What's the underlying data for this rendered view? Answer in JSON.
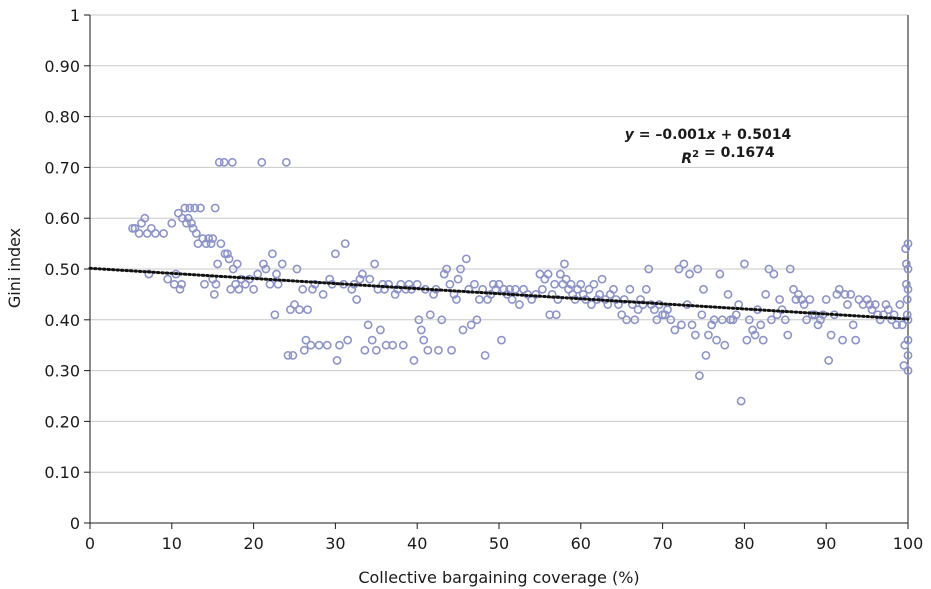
{
  "chart_data": {
    "type": "scatter",
    "xlabel": "Collective bargaining coverage (%)",
    "ylabel": "Gini index",
    "xlim": [
      0,
      100
    ],
    "ylim": [
      0,
      1
    ],
    "x_ticks": [
      0,
      10,
      20,
      30,
      40,
      50,
      60,
      70,
      80,
      90,
      100
    ],
    "x_tick_labels": [
      "0",
      "10",
      "20",
      "30",
      "40",
      "50",
      "60",
      "70",
      "80",
      "90",
      "100"
    ],
    "y_ticks": [
      0,
      0.1,
      0.2,
      0.3,
      0.4,
      0.5,
      0.6,
      0.7,
      0.8,
      0.9,
      1
    ],
    "y_tick_labels": [
      "0",
      "0.10",
      "0.20",
      "0.30",
      "0.40",
      "0.50",
      "0.60",
      "0.70",
      "0.80",
      "0.90",
      "1"
    ],
    "grid": "horizontal",
    "marker_color": "#8d93c8",
    "trendline_color": "#111111",
    "equation_line1": "y = –0.001x + 0.5014",
    "equation_line2": "R² = 0.1674",
    "trendline": {
      "slope": -0.001,
      "intercept": 0.5014,
      "r_squared": 0.1674,
      "style": "dotted"
    },
    "points": [
      [
        5.2,
        0.58
      ],
      [
        5.5,
        0.58
      ],
      [
        6,
        0.57
      ],
      [
        6.3,
        0.59
      ],
      [
        6.7,
        0.6
      ],
      [
        7,
        0.57
      ],
      [
        7.2,
        0.49
      ],
      [
        7.5,
        0.58
      ],
      [
        8,
        0.57
      ],
      [
        9,
        0.57
      ],
      [
        9.5,
        0.48
      ],
      [
        10,
        0.59
      ],
      [
        10.3,
        0.47
      ],
      [
        10.5,
        0.49
      ],
      [
        10.8,
        0.61
      ],
      [
        11,
        0.46
      ],
      [
        11.2,
        0.47
      ],
      [
        11.3,
        0.6
      ],
      [
        11.6,
        0.62
      ],
      [
        11.8,
        0.59
      ],
      [
        12,
        0.6
      ],
      [
        12.2,
        0.62
      ],
      [
        12.4,
        0.59
      ],
      [
        12.6,
        0.58
      ],
      [
        12.8,
        0.62
      ],
      [
        13,
        0.57
      ],
      [
        13.2,
        0.55
      ],
      [
        13.5,
        0.62
      ],
      [
        13.8,
        0.56
      ],
      [
        14,
        0.47
      ],
      [
        14.2,
        0.55
      ],
      [
        14.5,
        0.56
      ],
      [
        14.8,
        0.55
      ],
      [
        15,
        0.56
      ],
      [
        15,
        0.48
      ],
      [
        15.2,
        0.45
      ],
      [
        15.3,
        0.62
      ],
      [
        15.4,
        0.47
      ],
      [
        15.6,
        0.51
      ],
      [
        15.8,
        0.71
      ],
      [
        16,
        0.55
      ],
      [
        16.4,
        0.71
      ],
      [
        16.5,
        0.53
      ],
      [
        16.8,
        0.53
      ],
      [
        17,
        0.52
      ],
      [
        17.2,
        0.46
      ],
      [
        17.4,
        0.71
      ],
      [
        17.5,
        0.5
      ],
      [
        17.8,
        0.47
      ],
      [
        18,
        0.51
      ],
      [
        18.2,
        0.46
      ],
      [
        18.5,
        0.48
      ],
      [
        19,
        0.47
      ],
      [
        19.5,
        0.48
      ],
      [
        20,
        0.46
      ],
      [
        20.5,
        0.49
      ],
      [
        21,
        0.71
      ],
      [
        21.2,
        0.51
      ],
      [
        21.5,
        0.5
      ],
      [
        22,
        0.47
      ],
      [
        22.3,
        0.53
      ],
      [
        22.6,
        0.41
      ],
      [
        22.8,
        0.49
      ],
      [
        23,
        0.47
      ],
      [
        23.5,
        0.51
      ],
      [
        24,
        0.71
      ],
      [
        24.2,
        0.33
      ],
      [
        24.5,
        0.42
      ],
      [
        24.8,
        0.33
      ],
      [
        25,
        0.43
      ],
      [
        25.3,
        0.5
      ],
      [
        25.6,
        0.42
      ],
      [
        26,
        0.46
      ],
      [
        26.2,
        0.34
      ],
      [
        26.4,
        0.36
      ],
      [
        26.6,
        0.42
      ],
      [
        27,
        0.35
      ],
      [
        27.2,
        0.46
      ],
      [
        27.5,
        0.47
      ],
      [
        28,
        0.35
      ],
      [
        28.5,
        0.45
      ],
      [
        29,
        0.35
      ],
      [
        29.3,
        0.48
      ],
      [
        29.6,
        0.47
      ],
      [
        30,
        0.53
      ],
      [
        30.2,
        0.32
      ],
      [
        30.5,
        0.35
      ],
      [
        31,
        0.47
      ],
      [
        31.2,
        0.55
      ],
      [
        31.5,
        0.36
      ],
      [
        32,
        0.46
      ],
      [
        32.3,
        0.47
      ],
      [
        32.6,
        0.44
      ],
      [
        33,
        0.48
      ],
      [
        33.3,
        0.49
      ],
      [
        33.6,
        0.34
      ],
      [
        34,
        0.39
      ],
      [
        34.2,
        0.48
      ],
      [
        34.5,
        0.36
      ],
      [
        34.8,
        0.51
      ],
      [
        35,
        0.34
      ],
      [
        35.2,
        0.46
      ],
      [
        35.5,
        0.38
      ],
      [
        35.8,
        0.47
      ],
      [
        36,
        0.46
      ],
      [
        36.2,
        0.35
      ],
      [
        36.5,
        0.47
      ],
      [
        37,
        0.35
      ],
      [
        37.3,
        0.45
      ],
      [
        37.6,
        0.46
      ],
      [
        38,
        0.47
      ],
      [
        38.3,
        0.35
      ],
      [
        38.6,
        0.46
      ],
      [
        39,
        0.47
      ],
      [
        39.3,
        0.46
      ],
      [
        39.6,
        0.32
      ],
      [
        40,
        0.47
      ],
      [
        40.2,
        0.4
      ],
      [
        40.5,
        0.38
      ],
      [
        40.8,
        0.36
      ],
      [
        41,
        0.46
      ],
      [
        41.3,
        0.34
      ],
      [
        41.6,
        0.41
      ],
      [
        42,
        0.45
      ],
      [
        42.3,
        0.46
      ],
      [
        42.6,
        0.34
      ],
      [
        43,
        0.4
      ],
      [
        43.3,
        0.49
      ],
      [
        43.6,
        0.5
      ],
      [
        44,
        0.47
      ],
      [
        44.2,
        0.34
      ],
      [
        44.5,
        0.45
      ],
      [
        44.8,
        0.44
      ],
      [
        45,
        0.48
      ],
      [
        45.3,
        0.5
      ],
      [
        45.6,
        0.38
      ],
      [
        46,
        0.52
      ],
      [
        46.3,
        0.46
      ],
      [
        46.6,
        0.39
      ],
      [
        47,
        0.47
      ],
      [
        47.3,
        0.4
      ],
      [
        47.6,
        0.44
      ],
      [
        48,
        0.46
      ],
      [
        48.3,
        0.33
      ],
      [
        48.6,
        0.44
      ],
      [
        49,
        0.45
      ],
      [
        49.3,
        0.47
      ],
      [
        49.6,
        0.46
      ],
      [
        50,
        0.47
      ],
      [
        50.3,
        0.36
      ],
      [
        50.6,
        0.46
      ],
      [
        51,
        0.45
      ],
      [
        51.3,
        0.46
      ],
      [
        51.6,
        0.44
      ],
      [
        52,
        0.46
      ],
      [
        52.5,
        0.43
      ],
      [
        53,
        0.46
      ],
      [
        53.5,
        0.45
      ],
      [
        54,
        0.44
      ],
      [
        54.5,
        0.45
      ],
      [
        55,
        0.49
      ],
      [
        55.3,
        0.46
      ],
      [
        55.6,
        0.48
      ],
      [
        56,
        0.49
      ],
      [
        56.2,
        0.41
      ],
      [
        56.5,
        0.45
      ],
      [
        56.8,
        0.47
      ],
      [
        57,
        0.41
      ],
      [
        57.2,
        0.44
      ],
      [
        57.5,
        0.49
      ],
      [
        57.8,
        0.47
      ],
      [
        58,
        0.51
      ],
      [
        58.2,
        0.48
      ],
      [
        58.5,
        0.46
      ],
      [
        58.8,
        0.47
      ],
      [
        59,
        0.45
      ],
      [
        59.3,
        0.44
      ],
      [
        59.6,
        0.46
      ],
      [
        60,
        0.47
      ],
      [
        60.3,
        0.45
      ],
      [
        60.6,
        0.44
      ],
      [
        61,
        0.46
      ],
      [
        61.3,
        0.43
      ],
      [
        61.6,
        0.47
      ],
      [
        62,
        0.44
      ],
      [
        62.3,
        0.45
      ],
      [
        62.6,
        0.48
      ],
      [
        63,
        0.44
      ],
      [
        63.3,
        0.43
      ],
      [
        63.6,
        0.45
      ],
      [
        64,
        0.46
      ],
      [
        64.3,
        0.44
      ],
      [
        64.6,
        0.43
      ],
      [
        65,
        0.41
      ],
      [
        65.3,
        0.44
      ],
      [
        65.6,
        0.4
      ],
      [
        66,
        0.46
      ],
      [
        66.3,
        0.43
      ],
      [
        66.6,
        0.4
      ],
      [
        67,
        0.42
      ],
      [
        67.3,
        0.44
      ],
      [
        67.6,
        0.43
      ],
      [
        68,
        0.46
      ],
      [
        68.3,
        0.5
      ],
      [
        68.6,
        0.43
      ],
      [
        69,
        0.42
      ],
      [
        69.3,
        0.4
      ],
      [
        69.6,
        0.43
      ],
      [
        70,
        0.41
      ],
      [
        70.3,
        0.41
      ],
      [
        70.6,
        0.42
      ],
      [
        71,
        0.4
      ],
      [
        71.5,
        0.38
      ],
      [
        72,
        0.5
      ],
      [
        72.3,
        0.39
      ],
      [
        72.6,
        0.51
      ],
      [
        73,
        0.43
      ],
      [
        73.3,
        0.49
      ],
      [
        73.6,
        0.39
      ],
      [
        74,
        0.37
      ],
      [
        74.3,
        0.5
      ],
      [
        74.5,
        0.29
      ],
      [
        74.8,
        0.41
      ],
      [
        75,
        0.46
      ],
      [
        75.3,
        0.33
      ],
      [
        75.6,
        0.37
      ],
      [
        76,
        0.39
      ],
      [
        76.3,
        0.4
      ],
      [
        76.6,
        0.36
      ],
      [
        77,
        0.49
      ],
      [
        77.3,
        0.4
      ],
      [
        77.6,
        0.35
      ],
      [
        78,
        0.45
      ],
      [
        78.3,
        0.4
      ],
      [
        78.6,
        0.4
      ],
      [
        79,
        0.41
      ],
      [
        79.3,
        0.43
      ],
      [
        79.6,
        0.24
      ],
      [
        80,
        0.51
      ],
      [
        80.3,
        0.36
      ],
      [
        80.6,
        0.4
      ],
      [
        81,
        0.38
      ],
      [
        81.3,
        0.37
      ],
      [
        81.6,
        0.42
      ],
      [
        82,
        0.39
      ],
      [
        82.3,
        0.36
      ],
      [
        82.6,
        0.45
      ],
      [
        83,
        0.5
      ],
      [
        83.3,
        0.4
      ],
      [
        83.6,
        0.49
      ],
      [
        84,
        0.41
      ],
      [
        84.3,
        0.44
      ],
      [
        84.6,
        0.42
      ],
      [
        85,
        0.4
      ],
      [
        85.3,
        0.37
      ],
      [
        85.6,
        0.5
      ],
      [
        86,
        0.46
      ],
      [
        86.3,
        0.44
      ],
      [
        86.6,
        0.45
      ],
      [
        87,
        0.44
      ],
      [
        87.3,
        0.43
      ],
      [
        87.6,
        0.4
      ],
      [
        88,
        0.44
      ],
      [
        88.3,
        0.41
      ],
      [
        88.6,
        0.41
      ],
      [
        89,
        0.39
      ],
      [
        89.3,
        0.4
      ],
      [
        89.6,
        0.41
      ],
      [
        90,
        0.44
      ],
      [
        90.3,
        0.32
      ],
      [
        90.6,
        0.37
      ],
      [
        91,
        0.41
      ],
      [
        91.3,
        0.45
      ],
      [
        91.6,
        0.46
      ],
      [
        92,
        0.36
      ],
      [
        92.3,
        0.45
      ],
      [
        92.6,
        0.43
      ],
      [
        93,
        0.45
      ],
      [
        93.3,
        0.39
      ],
      [
        93.6,
        0.36
      ],
      [
        94,
        0.44
      ],
      [
        94.5,
        0.43
      ],
      [
        95,
        0.44
      ],
      [
        95.3,
        0.43
      ],
      [
        95.6,
        0.42
      ],
      [
        96,
        0.43
      ],
      [
        96.3,
        0.41
      ],
      [
        96.6,
        0.4
      ],
      [
        97,
        0.41
      ],
      [
        97.3,
        0.43
      ],
      [
        97.6,
        0.42
      ],
      [
        98,
        0.4
      ],
      [
        98.3,
        0.41
      ],
      [
        98.6,
        0.39
      ],
      [
        99,
        0.43
      ],
      [
        99.3,
        0.39
      ],
      [
        99.5,
        0.31
      ],
      [
        99.6,
        0.35
      ],
      [
        99.7,
        0.54
      ],
      [
        99.8,
        0.51
      ],
      [
        99.8,
        0.47
      ],
      [
        99.9,
        0.44
      ],
      [
        99.9,
        0.41
      ],
      [
        100,
        0.55
      ],
      [
        100,
        0.5
      ],
      [
        100,
        0.46
      ],
      [
        100,
        0.4
      ],
      [
        100,
        0.36
      ],
      [
        100,
        0.3
      ],
      [
        100,
        0.33
      ]
    ]
  }
}
